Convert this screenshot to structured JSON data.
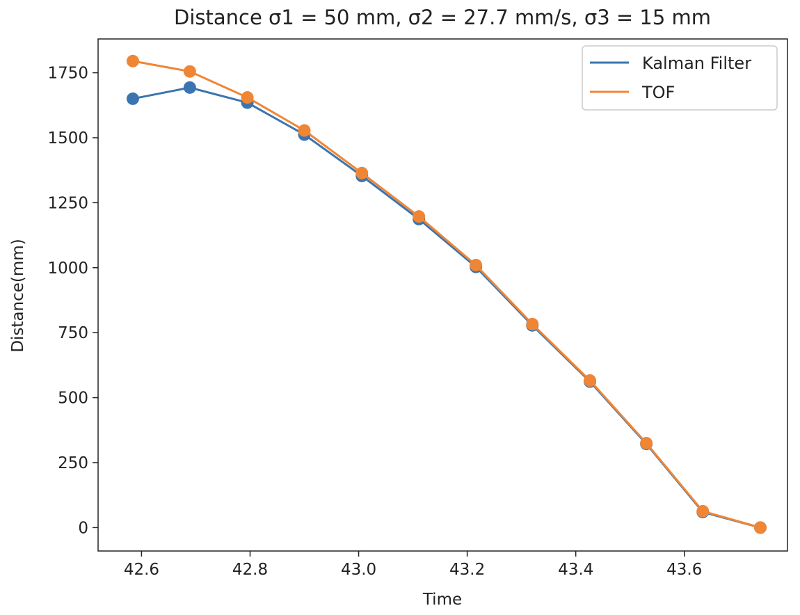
{
  "chart_data": {
    "type": "line",
    "title": "Distance σ1 = 50 mm, σ2 = 27.7 mm/s, σ3 = 15 mm",
    "xlabel": "Time",
    "ylabel": "Distance(mm)",
    "x": [
      42.584,
      42.689,
      42.795,
      42.9,
      43.006,
      43.111,
      43.216,
      43.32,
      43.426,
      43.53,
      43.634,
      43.74
    ],
    "xlim": [
      42.52,
      43.79
    ],
    "ylim": [
      -90,
      1880
    ],
    "xticks": [
      "42.6",
      "42.8",
      "43.0",
      "43.2",
      "43.4",
      "43.6"
    ],
    "xtick_values": [
      42.6,
      42.8,
      43.0,
      43.2,
      43.4,
      43.6
    ],
    "yticks": [
      "0",
      "250",
      "500",
      "750",
      "1000",
      "1250",
      "1500",
      "1750"
    ],
    "ytick_values": [
      0,
      250,
      500,
      750,
      1000,
      1250,
      1500,
      1750
    ],
    "series": [
      {
        "name": "Kalman Filter",
        "color": "#3b75af",
        "values": [
          1650,
          1693,
          1635,
          1512,
          1353,
          1187,
          1003,
          778,
          562,
          322,
          60,
          0
        ]
      },
      {
        "name": "TOF",
        "color": "#ef8636",
        "values": [
          1795,
          1755,
          1655,
          1528,
          1364,
          1197,
          1010,
          783,
          566,
          325,
          63,
          0
        ]
      }
    ],
    "legend_position": "top-right",
    "grid": false
  }
}
